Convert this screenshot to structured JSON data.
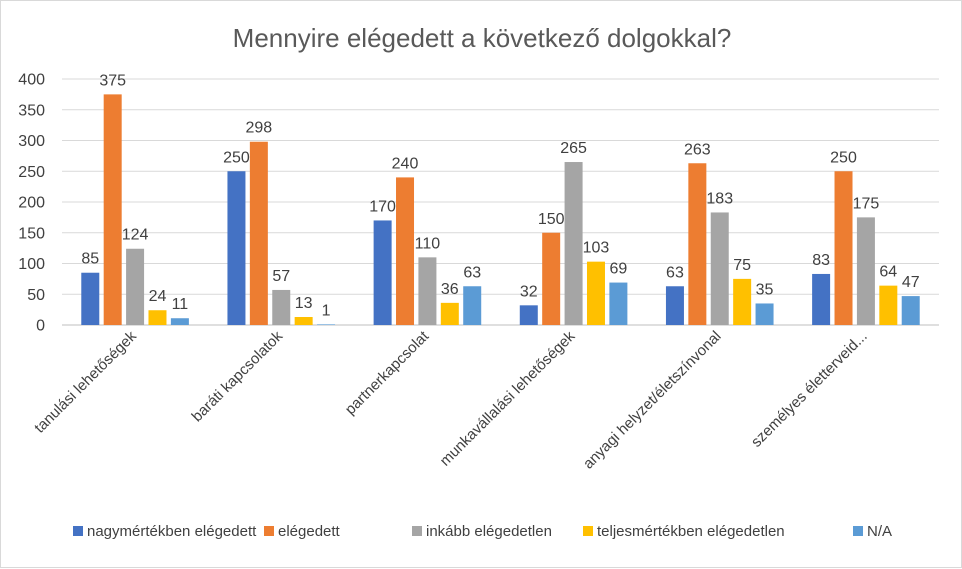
{
  "chart_data": {
    "type": "bar",
    "title": "Mennyire elégedett a következő dolgokkal?",
    "categories": [
      "tanulási lehetőségek",
      "baráti kapcsolatok",
      "partnerkapcsolat",
      "munkavállalási lehetőségek",
      "anyagi helyzet/életszínvonal",
      "személyes életterveid..."
    ],
    "series": [
      {
        "name": "nagymértékben elégedett",
        "color": "#4472c4",
        "values": [
          85,
          250,
          170,
          32,
          63,
          83
        ]
      },
      {
        "name": "elégedett",
        "color": "#ed7d31",
        "values": [
          375,
          298,
          240,
          150,
          263,
          250
        ]
      },
      {
        "name": "inkább elégedetlen",
        "color": "#a5a5a5",
        "values": [
          124,
          57,
          110,
          265,
          183,
          175
        ]
      },
      {
        "name": "teljesmértékben elégedetlen",
        "color": "#ffc000",
        "values": [
          24,
          13,
          36,
          103,
          75,
          64
        ]
      },
      {
        "name": "N/A",
        "color": "#5b9bd5",
        "values": [
          11,
          1,
          63,
          69,
          35,
          47
        ]
      }
    ],
    "y_ticks": [
      0,
      50,
      100,
      150,
      200,
      250,
      300,
      350,
      400
    ],
    "ylim": [
      0,
      400
    ],
    "xlabel": "",
    "ylabel": "",
    "grid": true,
    "legend_position": "bottom",
    "data_labels": true
  }
}
